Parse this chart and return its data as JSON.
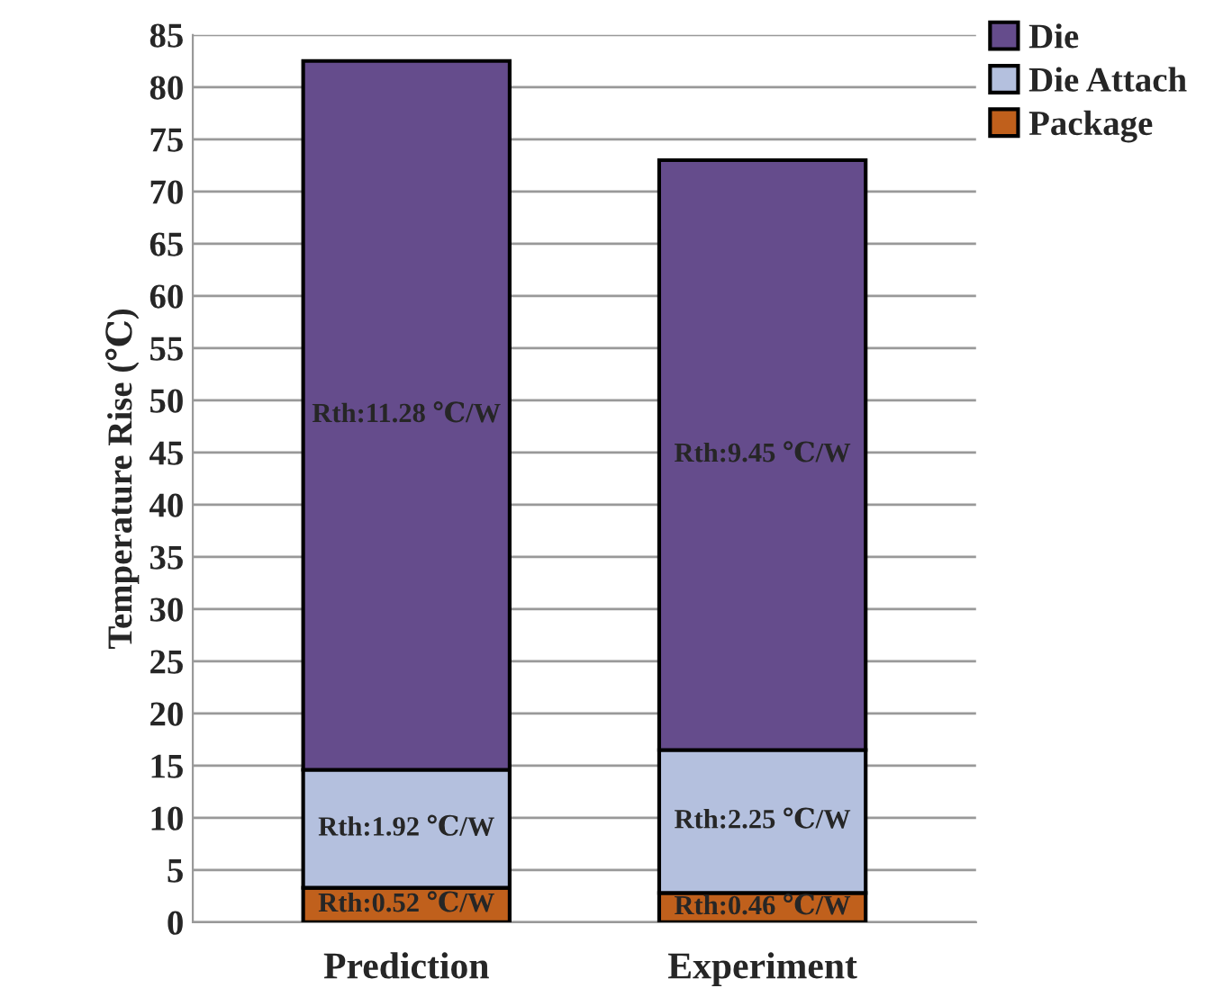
{
  "chart_data": {
    "type": "bar",
    "stacked": true,
    "ylabel": "Temperature Rise (℃)",
    "categories": [
      "Prediction",
      "Experiment"
    ],
    "series": [
      {
        "name": "Package",
        "color": "#c0601c",
        "values": [
          3.3,
          2.8
        ]
      },
      {
        "name": "Die Attach",
        "color": "#b4c0de",
        "values": [
          11.3,
          13.7
        ]
      },
      {
        "name": "Die",
        "color": "#654c8c",
        "values": [
          67.9,
          56.5
        ]
      }
    ],
    "ylim": [
      0,
      85
    ],
    "yticks": [
      0,
      5,
      10,
      15,
      20,
      25,
      30,
      35,
      40,
      45,
      50,
      55,
      60,
      65,
      70,
      75,
      80,
      85
    ],
    "grid": "y",
    "legend": "top right",
    "annotations": [
      "Rth:0.52 ℃/W",
      "Rth:0.46 ℃/W",
      "Rth:1.92 ℃/W",
      "Rth:2.25 ℃/W",
      "Rth:11.28 ℃/W",
      "Rth:9.45 ℃/W"
    ]
  }
}
